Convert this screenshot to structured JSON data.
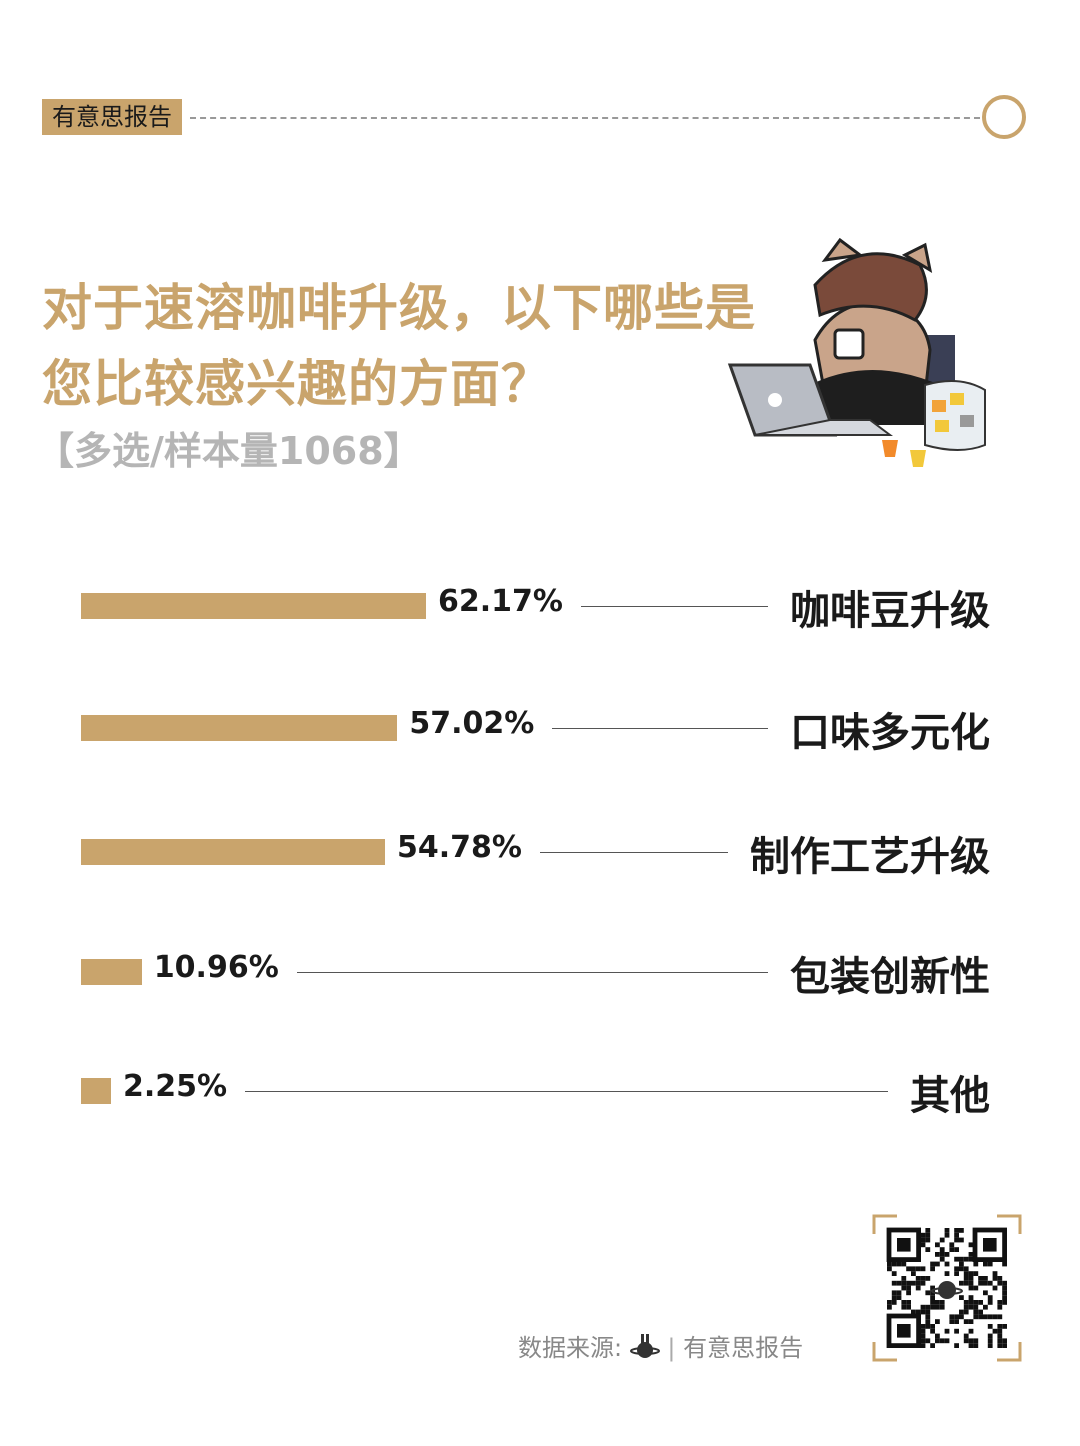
{
  "header": {
    "brand": "有意思报告"
  },
  "illustration": "person-drinking-coffee-at-laptop",
  "footer": {
    "source_label": "数据来源:",
    "source_name": "有意思报告",
    "qr": "qr-code"
  },
  "colors": {
    "accent": "#c9a46c",
    "text": "#1a1a1a",
    "muted": "#b5b5b5"
  },
  "chart_data": {
    "type": "bar",
    "orientation": "horizontal",
    "title": "对于速溶咖啡升级，以下哪些是您比较感兴趣的方面？",
    "title_lines": [
      "对于速溶咖啡升级，以下哪些是",
      "您比较感兴趣的方面？"
    ],
    "subtitle": "【多选/样本量1068】",
    "categories": [
      "咖啡豆升级",
      "口味多元化",
      "制作工艺升级",
      "包装创新性",
      "其他"
    ],
    "values": [
      62.17,
      57.02,
      54.78,
      10.96,
      2.25
    ],
    "value_labels": [
      "62.17%",
      "57.02%",
      "54.78%",
      "10.96%",
      "2.25%"
    ],
    "unit": "%",
    "grid": false,
    "legend": "none"
  }
}
